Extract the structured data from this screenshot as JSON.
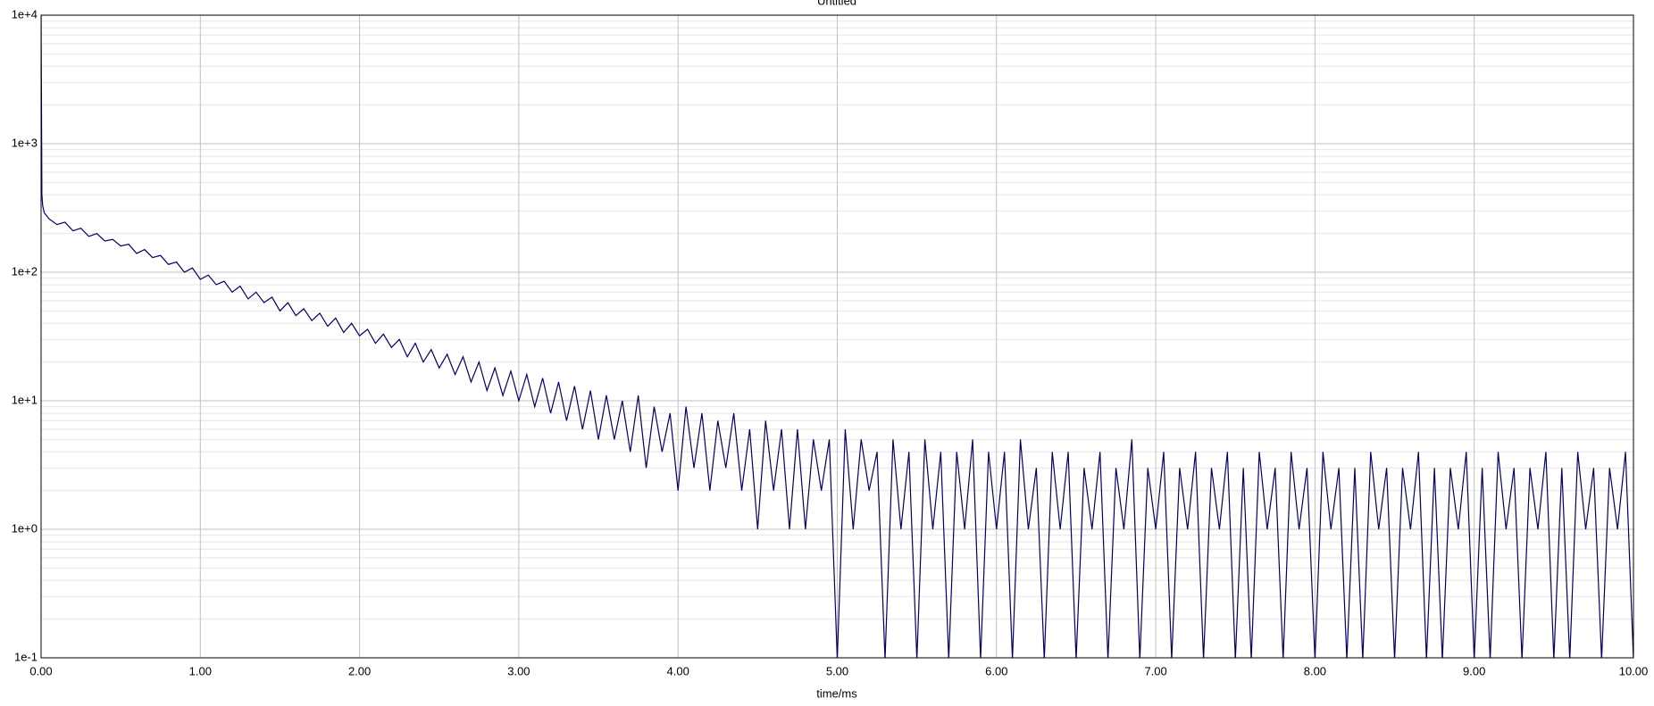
{
  "chart_data": {
    "type": "line",
    "title": "Untitled",
    "x_label": "time/ms",
    "log_y": true,
    "grid": true,
    "minor_grid": true,
    "xlim": [
      0,
      10
    ],
    "ylim": [
      0.1,
      10000
    ],
    "xticks": [
      {
        "value": 0,
        "label": "0.00"
      },
      {
        "value": 1,
        "label": "1.00"
      },
      {
        "value": 2,
        "label": "2.00"
      },
      {
        "value": 3,
        "label": "3.00"
      },
      {
        "value": 4,
        "label": "4.00"
      },
      {
        "value": 5,
        "label": "5.00"
      },
      {
        "value": 6,
        "label": "6.00"
      },
      {
        "value": 7,
        "label": "7.00"
      },
      {
        "value": 8,
        "label": "8.00"
      },
      {
        "value": 9,
        "label": "9.00"
      },
      {
        "value": 10,
        "label": "10.00"
      }
    ],
    "yticks": [
      {
        "value": 0.1,
        "label": "1e-1"
      },
      {
        "value": 1,
        "label": "1e+0"
      },
      {
        "value": 10,
        "label": "1e+1"
      },
      {
        "value": 100,
        "label": "1e+2"
      },
      {
        "value": 1000,
        "label": "1e+3"
      },
      {
        "value": 10000,
        "label": "1e+4"
      }
    ],
    "x": [
      0,
      0.005,
      0.01,
      0.02,
      0.05,
      0.1,
      0.15,
      0.2,
      0.25,
      0.3,
      0.35,
      0.4,
      0.45,
      0.5,
      0.55,
      0.6,
      0.65,
      0.7,
      0.75,
      0.8,
      0.85,
      0.9,
      0.95,
      1.0,
      1.05,
      1.1,
      1.15,
      1.2,
      1.25,
      1.3,
      1.35,
      1.4,
      1.45,
      1.5,
      1.55,
      1.6,
      1.65,
      1.7,
      1.75,
      1.8,
      1.85,
      1.9,
      1.95,
      2.0,
      2.05,
      2.1,
      2.15,
      2.2,
      2.25,
      2.3,
      2.35,
      2.4,
      2.45,
      2.5,
      2.55,
      2.6,
      2.65,
      2.7,
      2.75,
      2.8,
      2.85,
      2.9,
      2.95,
      3.0,
      3.05,
      3.1,
      3.15,
      3.2,
      3.25,
      3.3,
      3.35,
      3.4,
      3.45,
      3.5,
      3.55,
      3.6,
      3.65,
      3.7,
      3.75,
      3.8,
      3.85,
      3.9,
      3.95,
      4.0,
      4.05,
      4.1,
      4.15,
      4.2,
      4.25,
      4.3,
      4.35,
      4.4,
      4.45,
      4.5,
      4.55,
      4.6,
      4.65,
      4.7,
      4.75,
      4.8,
      4.85,
      4.9,
      4.95,
      5.0,
      5.05,
      5.1,
      5.15,
      5.2,
      5.25,
      5.3,
      5.35,
      5.4,
      5.45,
      5.5,
      5.55,
      5.6,
      5.65,
      5.7,
      5.75,
      5.8,
      5.85,
      5.9,
      5.95,
      6.0,
      6.05,
      6.1,
      6.15,
      6.2,
      6.25,
      6.3,
      6.35,
      6.4,
      6.45,
      6.5,
      6.55,
      6.6,
      6.65,
      6.7,
      6.75,
      6.8,
      6.85,
      6.9,
      6.95,
      7.0,
      7.05,
      7.1,
      7.15,
      7.2,
      7.25,
      7.3,
      7.35,
      7.4,
      7.45,
      7.5,
      7.55,
      7.6,
      7.65,
      7.7,
      7.75,
      7.8,
      7.85,
      7.9,
      7.95,
      8.0,
      8.05,
      8.1,
      8.15,
      8.2,
      8.25,
      8.3,
      8.35,
      8.4,
      8.45,
      8.5,
      8.55,
      8.6,
      8.65,
      8.7,
      8.75,
      8.8,
      8.85,
      8.9,
      8.95,
      9.0,
      9.05,
      9.1,
      9.15,
      9.2,
      9.25,
      9.3,
      9.35,
      9.4,
      9.45,
      9.5,
      9.55,
      9.6,
      9.65,
      9.7,
      9.75,
      9.8,
      9.85,
      9.9,
      9.95,
      10.0
    ],
    "series": [
      {
        "color": "#000066",
        "values": [
          10000,
          400,
          330,
          290,
          260,
          235,
          245,
          210,
          220,
          190,
          200,
          175,
          180,
          160,
          165,
          140,
          150,
          130,
          135,
          115,
          120,
          100,
          108,
          88,
          95,
          80,
          85,
          70,
          78,
          62,
          70,
          58,
          64,
          50,
          58,
          46,
          52,
          42,
          48,
          38,
          44,
          34,
          40,
          32,
          36,
          28,
          33,
          26,
          30,
          22,
          28,
          20,
          25,
          18,
          23,
          16,
          22,
          14,
          20,
          12,
          18,
          11,
          17,
          10,
          16,
          9,
          15,
          8,
          14,
          7,
          13,
          6,
          12,
          5,
          11,
          5,
          10,
          4,
          11,
          3,
          9,
          4,
          8,
          2,
          9,
          3,
          8,
          2,
          7,
          3,
          8,
          2,
          6,
          1,
          7,
          2,
          6,
          1,
          6,
          1,
          5,
          2,
          5,
          0,
          6,
          1,
          5,
          2,
          4,
          0,
          5,
          1,
          4,
          0,
          5,
          1,
          4,
          0,
          4,
          1,
          5,
          0,
          4,
          1,
          4,
          0,
          5,
          1,
          3,
          0,
          4,
          1,
          4,
          0,
          3,
          1,
          4,
          0,
          3,
          1,
          5,
          0,
          3,
          1,
          4,
          0,
          3,
          1,
          4,
          0,
          3,
          1,
          4,
          0,
          3,
          0,
          4,
          1,
          3,
          0,
          4,
          1,
          3,
          0,
          4,
          1,
          3,
          0,
          3,
          0,
          4,
          1,
          3,
          0,
          3,
          1,
          4,
          0,
          3,
          0,
          3,
          1,
          4,
          0,
          3,
          0,
          4,
          1,
          3,
          0,
          3,
          1,
          4,
          0,
          3,
          0,
          4,
          1,
          3,
          0,
          3,
          1,
          4,
          0
        ]
      }
    ]
  }
}
